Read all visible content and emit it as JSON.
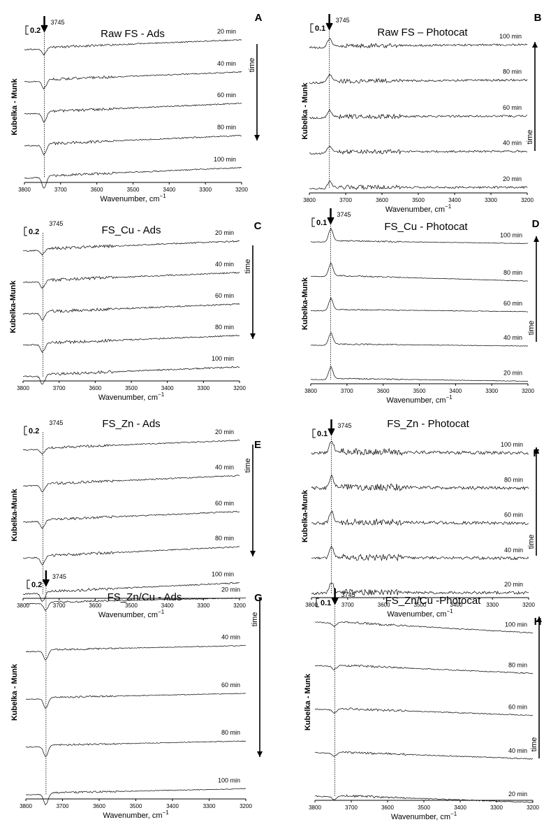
{
  "figure": {
    "wavenumber_unit": "cm",
    "wavenumber_exponent": "−1"
  },
  "chart_data": [
    {
      "panel_letter": "A",
      "type": "line",
      "title": "Raw FS - Ads",
      "xlabel": "Wavenumber, cm−1",
      "ylabel": "Kubelka - Munk",
      "x_ticks": [
        "3800",
        "3700",
        "3600",
        "3500",
        "3400",
        "3300",
        "3200"
      ],
      "xlim": [
        3800,
        3200
      ],
      "scale_bar": "0.2",
      "peak_label": "3745",
      "peak_arrow": true,
      "peak_wavenumber": 3745,
      "time_label": "time",
      "time_direction": "down",
      "series": [
        {
          "name": "20 min",
          "trend": 0.55,
          "noise": 0.5,
          "peak_depth": 1.0
        },
        {
          "name": "40 min",
          "trend": 0.55,
          "noise": 0.5,
          "peak_depth": 1.3
        },
        {
          "name": "60 min",
          "trend": 0.6,
          "noise": 0.55,
          "peak_depth": 1.5
        },
        {
          "name": "80 min",
          "trend": 0.6,
          "noise": 0.55,
          "peak_depth": 1.6
        },
        {
          "name": "100 min",
          "trend": 0.6,
          "noise": 0.5,
          "peak_depth": 1.8
        }
      ]
    },
    {
      "panel_letter": "B",
      "type": "line",
      "title": "Raw FS – Photocat",
      "xlabel": "Wavenumber, cm−1",
      "ylabel": "Kubelka - Munk",
      "x_ticks": [
        "3800",
        "3700",
        "3600",
        "3500",
        "3400",
        "3300",
        "3200"
      ],
      "xlim": [
        3800,
        3200
      ],
      "scale_bar": "0.1",
      "peak_label": "3745",
      "peak_arrow": true,
      "peak_wavenumber": 3745,
      "time_label": "time",
      "time_direction": "up",
      "series": [
        {
          "name": "100 min",
          "trend": 0.1,
          "noise": 0.9,
          "peak_depth": -1.2
        },
        {
          "name": "80 min",
          "trend": 0.1,
          "noise": 0.9,
          "peak_depth": -1.2
        },
        {
          "name": "60 min",
          "trend": 0.05,
          "noise": 0.9,
          "peak_depth": -1.1
        },
        {
          "name": "40 min",
          "trend": 0.05,
          "noise": 0.9,
          "peak_depth": -1.0
        },
        {
          "name": "20 min",
          "trend": 0.0,
          "noise": 0.9,
          "peak_depth": -1.0
        }
      ]
    },
    {
      "panel_letter": "C",
      "type": "line",
      "title": "FS_Cu - Ads",
      "xlabel": "Wavenumber, cm−1",
      "ylabel": "Kubelka-Munk",
      "x_ticks": [
        "3800",
        "3700",
        "3600",
        "3500",
        "3400",
        "3300",
        "3200"
      ],
      "xlim": [
        3800,
        3200
      ],
      "scale_bar": "0.2",
      "peak_label": "3745",
      "peak_arrow": false,
      "peak_wavenumber": 3745,
      "time_label": "time",
      "time_direction": "down",
      "series": [
        {
          "name": "20 min",
          "trend": 0.55,
          "noise": 0.6,
          "peak_depth": 0.8
        },
        {
          "name": "40 min",
          "trend": 0.55,
          "noise": 0.6,
          "peak_depth": 1.1
        },
        {
          "name": "60 min",
          "trend": 0.55,
          "noise": 0.6,
          "peak_depth": 1.2
        },
        {
          "name": "80 min",
          "trend": 0.55,
          "noise": 0.6,
          "peak_depth": 1.3
        },
        {
          "name": "100 min",
          "trend": 0.55,
          "noise": 0.6,
          "peak_depth": 1.4
        }
      ]
    },
    {
      "panel_letter": "D",
      "type": "line",
      "title": "FS_Cu - Photocat",
      "xlabel": "Wavenumber, cm−1",
      "ylabel": "Kubelka-Munk",
      "x_ticks": [
        "3800",
        "3700",
        "3600",
        "3500",
        "3400",
        "3300",
        "3200"
      ],
      "xlim": [
        3800,
        3200
      ],
      "scale_bar": "0.1",
      "peak_label": "3745",
      "peak_arrow": true,
      "peak_wavenumber": 3745,
      "time_label": "time",
      "time_direction": "up",
      "series": [
        {
          "name": "100 min",
          "trend": -0.2,
          "noise": 0.25,
          "peak_depth": -2.0
        },
        {
          "name": "80 min",
          "trend": -0.4,
          "noise": 0.25,
          "peak_depth": -2.0
        },
        {
          "name": "60 min",
          "trend": -0.15,
          "noise": 0.25,
          "peak_depth": -1.8
        },
        {
          "name": "40 min",
          "trend": -0.15,
          "noise": 0.25,
          "peak_depth": -1.8
        },
        {
          "name": "20 min",
          "trend": -0.2,
          "noise": 0.25,
          "peak_depth": -1.9
        }
      ]
    },
    {
      "panel_letter": "E",
      "type": "line",
      "title": "FS_Zn - Ads",
      "xlabel": "Wavenumber, cm−1",
      "ylabel": "Kubelka-Munk",
      "x_ticks": [
        "3800",
        "3700",
        "3600",
        "3500",
        "3400",
        "3300",
        "3200"
      ],
      "xlim": [
        3800,
        3200
      ],
      "scale_bar": "0.2",
      "peak_label": "3745",
      "peak_arrow": false,
      "peak_wavenumber": 3745,
      "time_label": "time",
      "time_direction": "down",
      "series": [
        {
          "name": "20 min",
          "trend": 0.55,
          "noise": 0.5,
          "peak_depth": 0.8
        },
        {
          "name": "40 min",
          "trend": 0.6,
          "noise": 0.55,
          "peak_depth": 1.1
        },
        {
          "name": "60 min",
          "trend": 0.6,
          "noise": 0.55,
          "peak_depth": 1.2
        },
        {
          "name": "80 min",
          "trend": 0.65,
          "noise": 0.55,
          "peak_depth": 1.3
        },
        {
          "name": "100 min",
          "trend": 0.65,
          "noise": 0.55,
          "peak_depth": 1.4
        }
      ]
    },
    {
      "panel_letter": "F",
      "type": "line",
      "title": "FS_Zn - Photocat",
      "xlabel": "Wavenumber, cm−1",
      "ylabel": "Kubelka-Munk",
      "x_ticks": [
        "3800",
        "3700",
        "3600",
        "3500",
        "3400",
        "3300",
        "3200"
      ],
      "xlim": [
        3800,
        3200
      ],
      "scale_bar": "0.1",
      "peak_label": "3745",
      "peak_arrow": true,
      "peak_wavenumber": 3745,
      "time_label": "time",
      "time_direction": "up",
      "series": [
        {
          "name": "100 min",
          "trend": -0.1,
          "noise": 1.4,
          "peak_depth": -1.8
        },
        {
          "name": "80 min",
          "trend": -0.1,
          "noise": 1.4,
          "peak_depth": -1.8
        },
        {
          "name": "60 min",
          "trend": -0.1,
          "noise": 1.3,
          "peak_depth": -1.7
        },
        {
          "name": "40 min",
          "trend": -0.1,
          "noise": 1.3,
          "peak_depth": -1.7
        },
        {
          "name": "20 min",
          "trend": -0.05,
          "noise": 1.2,
          "peak_depth": -1.6
        }
      ]
    },
    {
      "panel_letter": "G",
      "type": "line",
      "title": "FS_Zn/Cu - Ads",
      "xlabel": "Wavenumber, cm−1",
      "ylabel": "Kubelka - Munk",
      "x_ticks": [
        "3800",
        "3700",
        "3600",
        "3500",
        "3400",
        "3300",
        "3200"
      ],
      "xlim": [
        3800,
        3200
      ],
      "scale_bar": "0.2",
      "peak_label": "3745",
      "peak_arrow": true,
      "peak_wavenumber": 3745,
      "time_label": "time",
      "time_direction": "down",
      "series": [
        {
          "name": "20 min",
          "trend": 0.3,
          "noise": 0.35,
          "peak_depth": 1.2
        },
        {
          "name": "40 min",
          "trend": 0.3,
          "noise": 0.35,
          "peak_depth": 1.5
        },
        {
          "name": "60 min",
          "trend": 0.3,
          "noise": 0.35,
          "peak_depth": 1.6
        },
        {
          "name": "80 min",
          "trend": 0.3,
          "noise": 0.35,
          "peak_depth": 1.7
        },
        {
          "name": "100 min",
          "trend": 0.3,
          "noise": 0.35,
          "peak_depth": 1.8
        }
      ]
    },
    {
      "panel_letter": "H",
      "type": "line",
      "title": "FS_Zn/Cu -Photocat",
      "xlabel": "Wavenumber, cm−1",
      "ylabel": "Kubelka - Munk",
      "x_ticks": [
        "3800",
        "3700",
        "3600",
        "3500",
        "3400",
        "3300",
        "3200"
      ],
      "xlim": [
        3800,
        3200
      ],
      "scale_bar": "0.1",
      "peak_label": "3745",
      "peak_arrow": true,
      "peak_wavenumber": 3745,
      "time_label": "time",
      "time_direction": "up",
      "series": [
        {
          "name": "100 min",
          "trend": -0.8,
          "noise": 0.45,
          "peak_depth": 0.6
        },
        {
          "name": "80 min",
          "trend": -0.6,
          "noise": 0.45,
          "peak_depth": 0.6
        },
        {
          "name": "60 min",
          "trend": -0.5,
          "noise": 0.45,
          "peak_depth": 0.6
        },
        {
          "name": "40 min",
          "trend": -0.5,
          "noise": 0.45,
          "peak_depth": 0.6
        },
        {
          "name": "20 min",
          "trend": -0.5,
          "noise": 0.45,
          "peak_depth": 0.6
        }
      ]
    }
  ]
}
